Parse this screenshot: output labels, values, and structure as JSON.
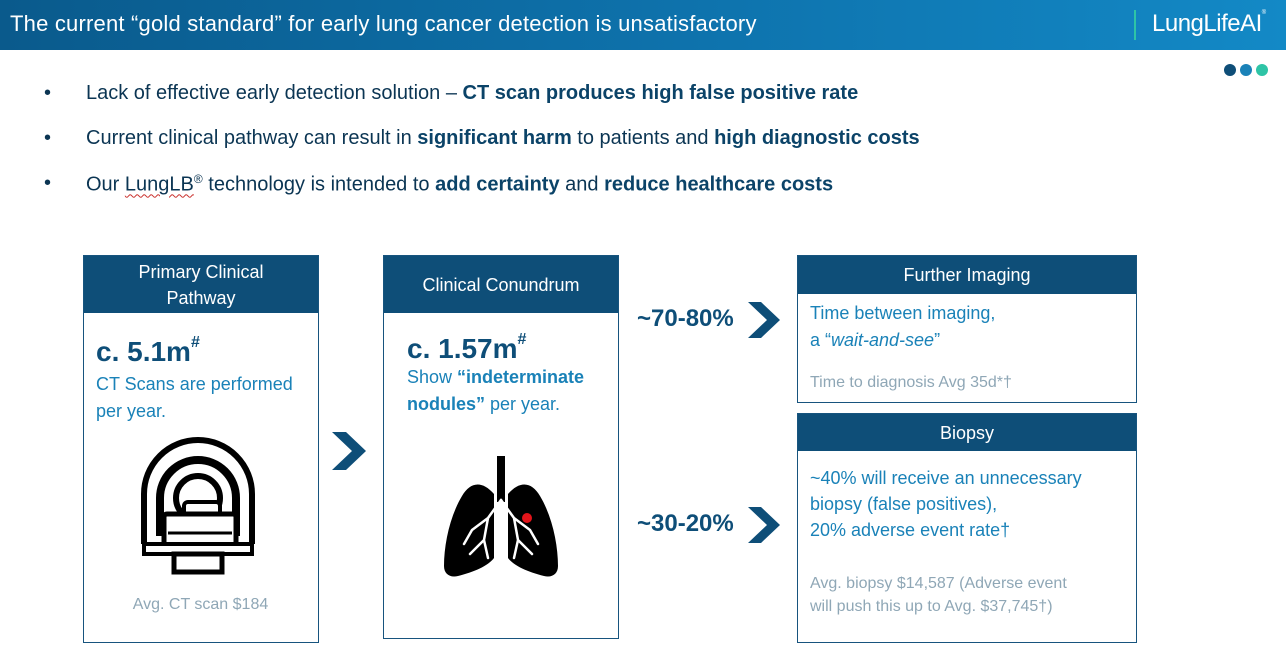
{
  "header": {
    "title": "The current “gold standard” for early lung cancer detection is unsatisfactory",
    "logo": "LungLifeAI",
    "logo_mark": "®"
  },
  "colors": {
    "header_start": "#0a5a8c",
    "header_end": "#1389c6",
    "navy": "#0e4e78",
    "accent_blue": "#1a82b8",
    "teal": "#2ec4a6",
    "grey_text": "#8fa7b6",
    "dots": [
      "#0e4e78",
      "#1a82b8",
      "#2ec4a6"
    ]
  },
  "bullets": [
    {
      "p1": "Lack of effective early detection solution – ",
      "b1": "CT scan produces high false positive rate"
    },
    {
      "p1": "Current clinical pathway can result in ",
      "b1": "significant harm",
      "p2": " to patients and ",
      "b2": "high diagnostic costs"
    },
    {
      "p1": "Our ",
      "squig": "LungLB",
      "reg": "®",
      "p2": " technology is intended to ",
      "b1": "add certainty",
      "p3": " and ",
      "b2": "reduce healthcare costs"
    }
  ],
  "cards": {
    "primary": {
      "title_line1": "Primary Clinical",
      "title_line2": "Pathway",
      "big": "c. 5.1m",
      "mark": "#",
      "line1": "CT Scans are performed",
      "line2": "per year.",
      "cost": "Avg. CT scan $184",
      "icon": "ct-scanner-icon"
    },
    "conundrum": {
      "title": "Clinical Conundrum",
      "big": "c. 1.57m",
      "mark": "#",
      "show": "Show ",
      "bold1": "“indeterminate",
      "bold2": "nodules”",
      "rest": " per year.",
      "icon": "lungs-icon"
    },
    "imaging": {
      "title": "Further Imaging",
      "line1": "Time between imaging,",
      "line2a": "a “",
      "line2b": "wait-and-see",
      "line2c": "”",
      "diag": "Time to diagnosis Avg 35d*†"
    },
    "biopsy": {
      "title": "Biopsy",
      "line1": "~40% will receive an unnecessary",
      "line2": "biopsy (false positives),",
      "line3": "20% adverse event rate†",
      "cost1": "Avg. biopsy $14,587 (Adverse event",
      "cost2": "will push this up to Avg. $37,745†)"
    }
  },
  "flows": {
    "upper": "~70-80%",
    "lower": "~30-20%"
  }
}
